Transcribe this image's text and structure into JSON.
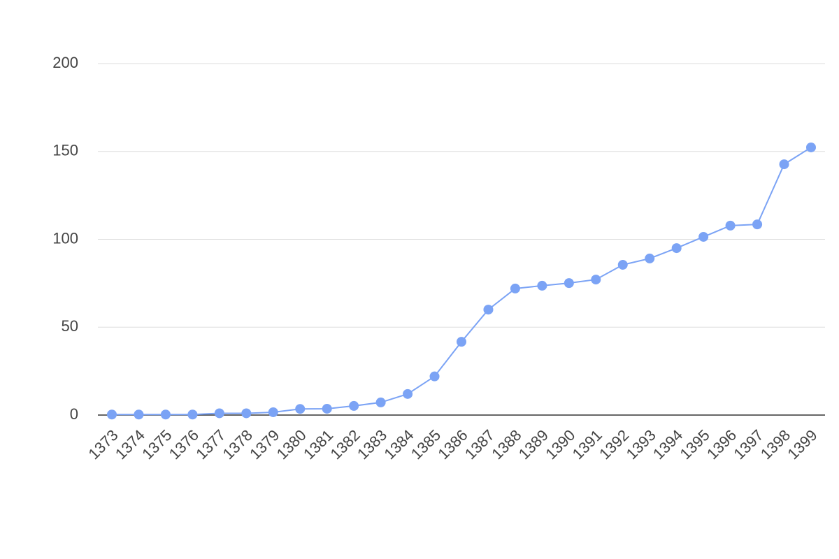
{
  "chart_data": {
    "type": "line",
    "categories": [
      "1373",
      "1374",
      "1375",
      "1376",
      "1377",
      "1378",
      "1379",
      "1380",
      "1381",
      "1382",
      "1383",
      "1384",
      "1385",
      "1386",
      "1387",
      "1388",
      "1389",
      "1390",
      "1391",
      "1392",
      "1393",
      "1394",
      "1395",
      "1396",
      "1397",
      "1398",
      "1399"
    ],
    "values": [
      0.3,
      0.3,
      0.3,
      0.3,
      1,
      1,
      1.6,
      3.5,
      3.6,
      5.2,
      7.2,
      12,
      22,
      41.7,
      60,
      72,
      73.6,
      75.1,
      77.1,
      85.5,
      89.1,
      95,
      101.4,
      107.8,
      108.5,
      142.7,
      152.3
    ],
    "color": "#7ba3f5",
    "ylim": [
      0,
      200
    ],
    "yticks": [
      0,
      50,
      100,
      150,
      200
    ],
    "grid": true
  }
}
